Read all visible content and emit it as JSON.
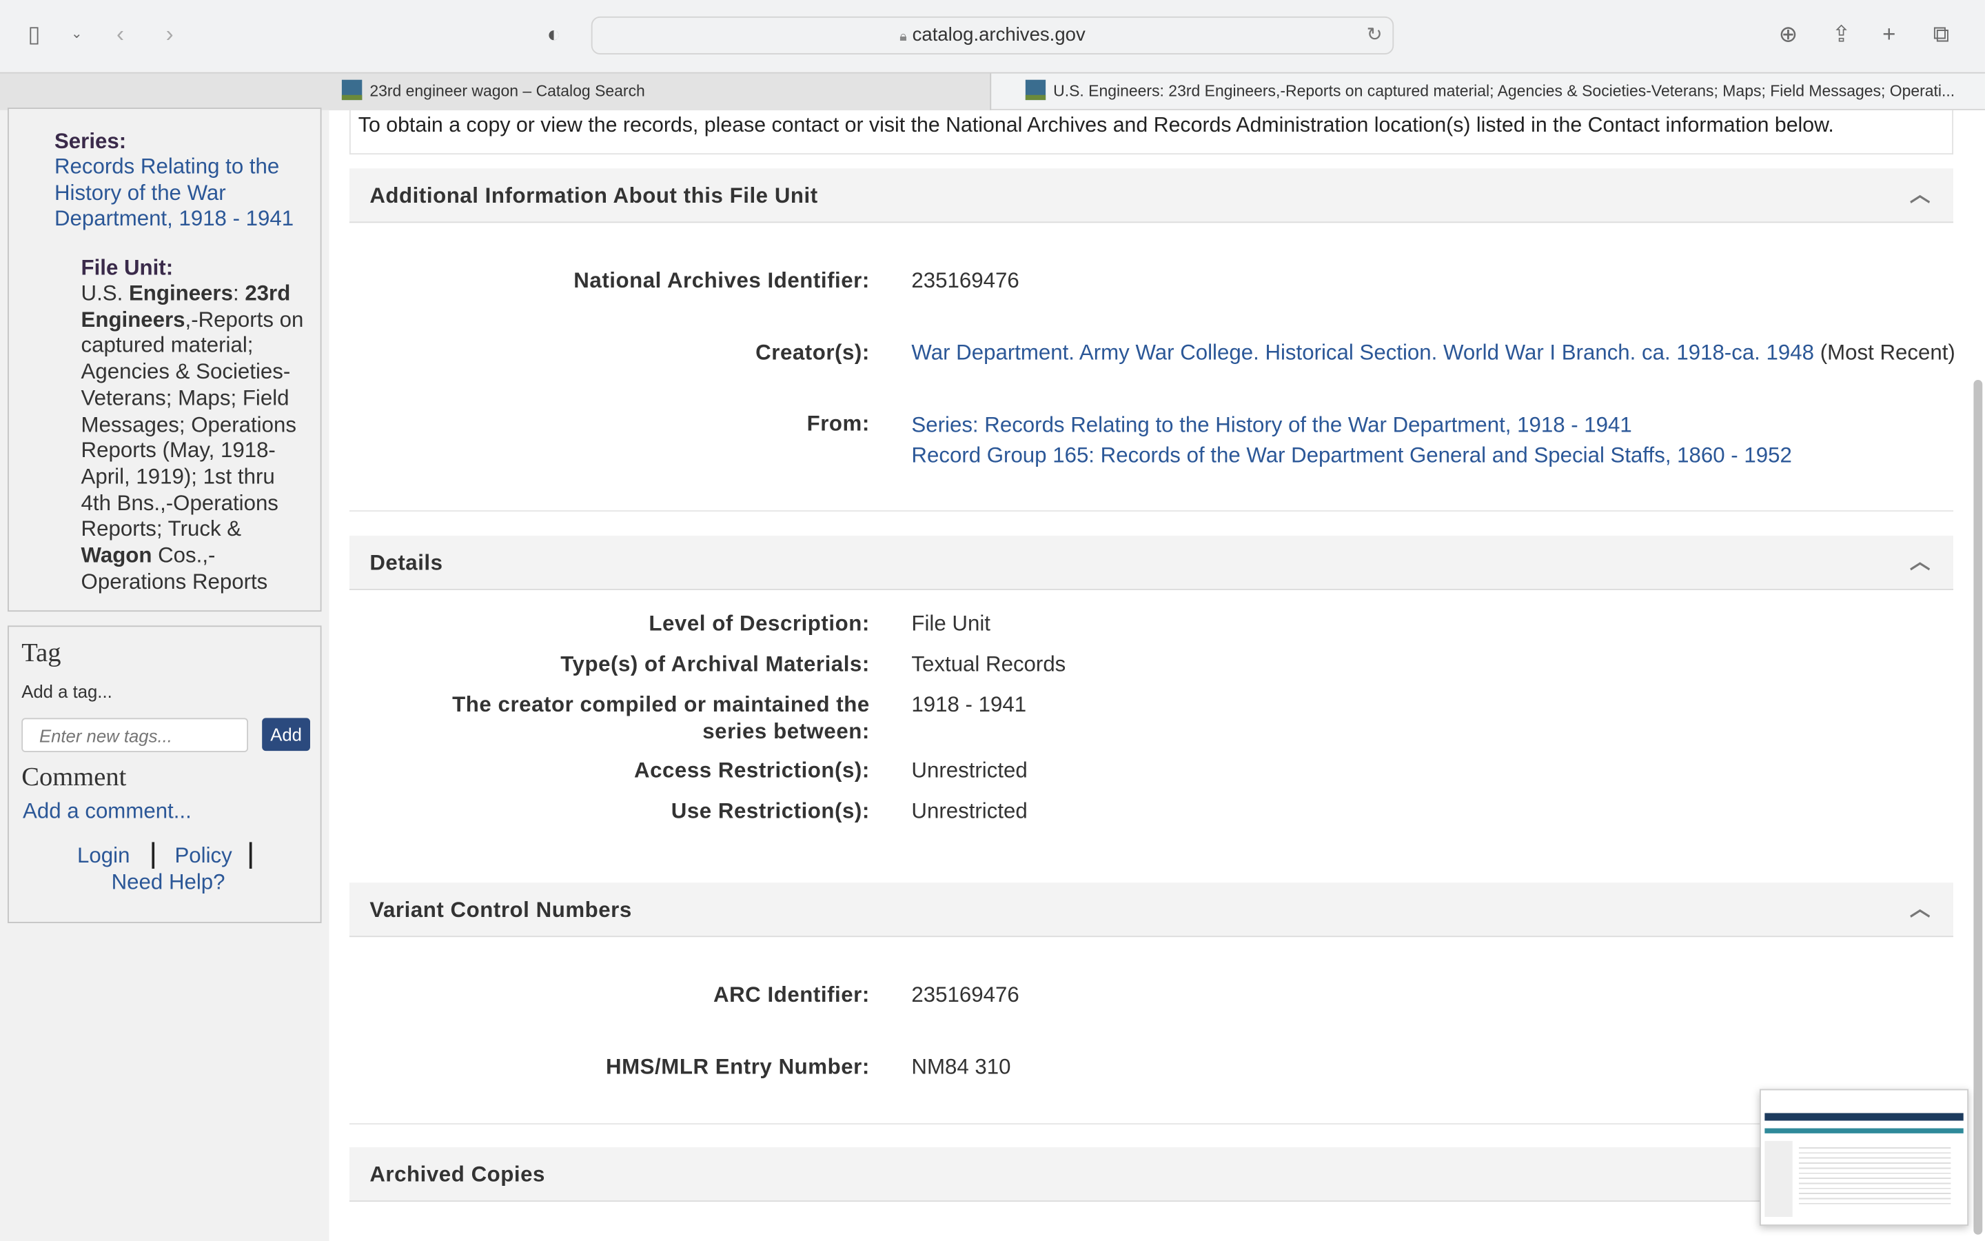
{
  "browser": {
    "url": "catalog.archives.gov",
    "tabs": [
      {
        "label": "23rd engineer wagon – Catalog Search",
        "active": false
      },
      {
        "label": "U.S. Engineers: 23rd Engineers,-Reports on captured material; Agencies & Societies-Veterans; Maps; Field Messages; Operati...",
        "active": true
      }
    ]
  },
  "sidebar": {
    "series_label": "Series:",
    "series_link": "Records Relating to the History of the War Department, 1918 - 1941",
    "file_unit_label": "File Unit:",
    "file_unit_parts": [
      "U.S. ",
      "Engineers",
      ": ",
      "23rd Engineers",
      ",-Reports on captured material; Agencies & Societies-Veterans; Maps; Field Messages; Operations Reports (May, 1918-April, 1919); 1st thru 4th Bns.,-Operations Reports; Truck & ",
      "Wagon",
      " Cos.,-Operations Reports"
    ],
    "tag_title": "Tag",
    "tag_prompt": "Add a tag...",
    "tag_placeholder": "Enter new tags...",
    "add_button": "Add",
    "comment_title": "Comment",
    "comment_link": "Add a comment...",
    "login": "Login",
    "policy": "Policy",
    "help": "Need Help?"
  },
  "main": {
    "notice": "To obtain a copy or view the records, please contact or visit the National Archives and Records Administration location(s) listed in the Contact information below.",
    "sections": {
      "additional": {
        "title": "Additional Information About this File Unit",
        "naid_label": "National Archives Identifier:",
        "naid": "235169476",
        "creator_label": "Creator(s):",
        "creator": "War Department. Army War College. Historical Section. World War I Branch. ca. 1918-ca. 1948",
        "creator_note": "(Most Recent)",
        "from_label": "From:",
        "from_series": "Series: Records Relating to the History of the War Department, 1918 - 1941",
        "from_rg": "Record Group 165: Records of the War Department General and Special Staffs, 1860 - 1952"
      },
      "details": {
        "title": "Details",
        "rows": [
          {
            "label": "Level of Description:",
            "value": "File Unit"
          },
          {
            "label": "Type(s) of Archival Materials:",
            "value": "Textual Records"
          },
          {
            "label": "The creator compiled or maintained the series between:",
            "value": "1918 - 1941"
          },
          {
            "label": "Access Restriction(s):",
            "value": "Unrestricted"
          },
          {
            "label": "Use Restriction(s):",
            "value": "Unrestricted"
          }
        ]
      },
      "variant": {
        "title": "Variant Control Numbers",
        "arc_label": "ARC Identifier:",
        "arc": "235169476",
        "hms_label": "HMS/MLR Entry Number:",
        "hms": "NM84 310"
      },
      "archived": {
        "title": "Archived Copies"
      }
    }
  },
  "colors": {
    "link": "#2b5797",
    "add_button": "#2b4a7e"
  }
}
